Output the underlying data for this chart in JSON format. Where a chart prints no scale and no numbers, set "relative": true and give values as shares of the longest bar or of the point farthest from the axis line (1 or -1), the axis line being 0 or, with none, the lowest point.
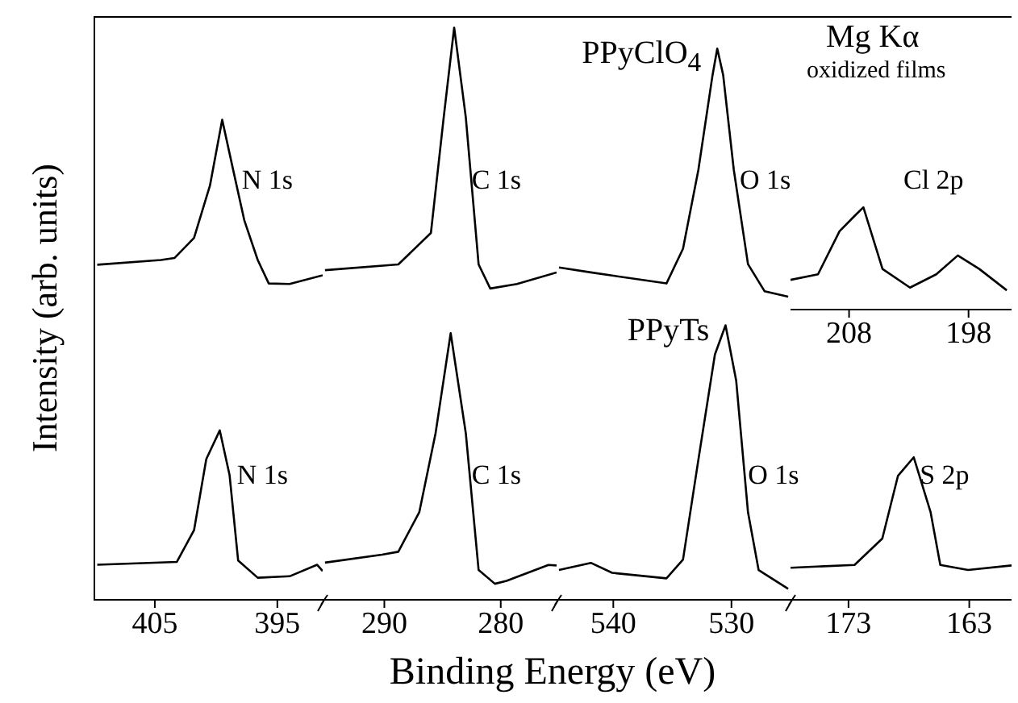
{
  "chart_data": [
    {
      "type": "line",
      "relative": true,
      "marker": "none",
      "xlabel": "Binding Energy (eV)",
      "ylabel": "Intensity (arb. units)",
      "xlim": [
        410,
        391.3
      ],
      "xticks": [
        405,
        395
      ],
      "series": [
        {
          "color": "#000000",
          "x": [
            409.7,
            404.5,
            403.4,
            401.8,
            400.5,
            399.5,
            398.6,
            397.7,
            396.6,
            395.7,
            394,
            391.3
          ],
          "values": [
            0.698,
            0.708,
            0.712,
            0.754,
            0.863,
            1.0,
            0.895,
            0.791,
            0.708,
            0.659,
            0.658,
            0.676
          ]
        },
        {
          "color": "#000000",
          "x": [
            409.7,
            403.2,
            401.8,
            400.8,
            399.7,
            398.9,
            398.2,
            396.6,
            394,
            391.75,
            391.3
          ],
          "values": [
            0.073,
            0.079,
            0.145,
            0.293,
            0.353,
            0.26,
            0.082,
            0.046,
            0.049,
            0.073,
            0.06
          ]
        }
      ],
      "annotations": [
        {
          "text": "N 1s",
          "x": 397.9,
          "y": 0.87
        },
        {
          "text": "N 1s",
          "x": 398.3,
          "y": 0.254
        }
      ]
    },
    {
      "type": "line",
      "relative": true,
      "marker": "none",
      "xlim": [
        295.3,
        275.2
      ],
      "xticks": [
        290,
        280
      ],
      "series": [
        {
          "color": "#000000",
          "x": [
            295.1,
            288.8,
            286.0,
            284.9,
            284.0,
            283.0,
            281.9,
            280.9,
            278.6,
            275.2
          ],
          "values": [
            0.576,
            0.586,
            0.641,
            0.843,
            1.0,
            0.843,
            0.586,
            0.544,
            0.552,
            0.572
          ]
        },
        {
          "color": "#000000",
          "x": [
            295.1,
            290.2,
            288.8,
            287.0,
            285.6,
            284.3,
            283.0,
            281.9,
            280.5,
            279.5,
            275.9,
            275.2
          ],
          "values": [
            0.065,
            0.079,
            0.084,
            0.153,
            0.291,
            0.466,
            0.291,
            0.052,
            0.028,
            0.033,
            0.061,
            0.06
          ]
        }
      ],
      "annotations": [
        {
          "text": "C 1s",
          "x": 282.5,
          "y": 0.73
        },
        {
          "text": "C 1s",
          "x": 282.5,
          "y": 0.213
        }
      ]
    },
    {
      "type": "line",
      "relative": true,
      "marker": "none",
      "xlim": [
        544.8,
        525.0
      ],
      "xticks": [
        540,
        530
      ],
      "series": [
        {
          "name": "PPyClO$_{4}$",
          "color": "#000000",
          "x": [
            544.6,
            541.9,
            535.5,
            534.1,
            532.8,
            531.6,
            531.2,
            530.7,
            529.8,
            528.6,
            527.2,
            525.2
          ],
          "values": [
            0.603,
            0.594,
            0.574,
            0.637,
            0.78,
            0.952,
            1.0,
            0.952,
            0.78,
            0.609,
            0.56,
            0.55
          ]
        },
        {
          "name": "PPyTs",
          "color": "#000000",
          "x": [
            544.6,
            541.9,
            540.1,
            535.5,
            534.1,
            532.8,
            531.4,
            530.5,
            529.6,
            528.6,
            527.7,
            525.2
          ],
          "values": [
            0.054,
            0.067,
            0.049,
            0.039,
            0.073,
            0.254,
            0.445,
            0.498,
            0.398,
            0.159,
            0.054,
            0.02
          ]
        }
      ],
      "annotations": [
        {
          "text": "O 1s",
          "x": 529.3,
          "y": 0.758
        },
        {
          "text": "O 1s",
          "x": 528.6,
          "y": 0.221
        }
      ]
    },
    {
      "type": "line",
      "relative": true,
      "marker": "none",
      "xlim": [
        177.8,
        159.5
      ],
      "xticks": [
        173,
        163
      ],
      "series": [
        {
          "color": "#000000",
          "x": [
            177.8,
            172.5,
            170.2,
            168.9,
            167.6,
            166.2,
            165.4,
            163.1,
            159.5
          ],
          "values": [
            0.225,
            0.245,
            0.43,
            0.871,
            1.0,
            0.614,
            0.245,
            0.209,
            0.241
          ]
        }
      ],
      "annotations": [
        "Mg Kα",
        "oxidized films",
        {
          "text": "S 2p",
          "x": 167.1,
          "y": 0.855
        }
      ]
    },
    {
      "type": "line",
      "relative": true,
      "marker": "none",
      "xlim": [
        212.9,
        194.4
      ],
      "xticks": [
        208,
        198
      ],
      "series": [
        {
          "color": "#000000",
          "x": [
            212.9,
            210.6,
            208.8,
            207.5,
            206.8,
            205.2,
            202.9,
            200.7,
            198.9,
            197.1,
            194.8
          ],
          "values": [
            0.29,
            0.345,
            0.765,
            0.92,
            1.0,
            0.397,
            0.215,
            0.345,
            0.529,
            0.397,
            0.188
          ]
        }
      ],
      "annotations": [
        "Cl 2p"
      ]
    }
  ]
}
